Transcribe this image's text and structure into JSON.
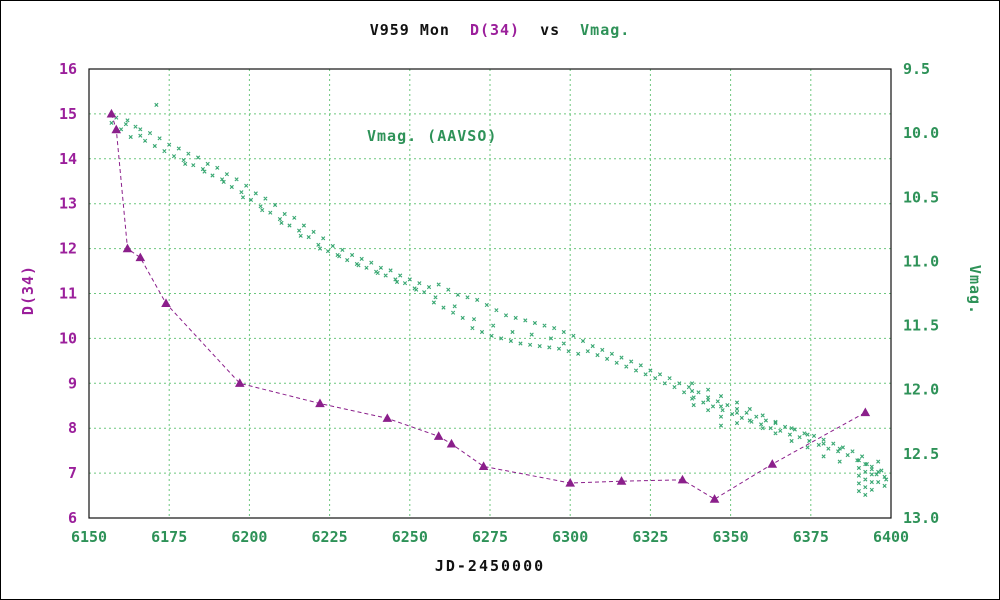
{
  "title": {
    "part1": "V959 Mon",
    "part2": "D(34)",
    "part3": "vs",
    "part4": "Vmag."
  },
  "annotation": "Vmag. (AAVSO)",
  "colors": {
    "green_text": "#2e9258",
    "green_marker": "#3aa873",
    "purple_text": "#9b1f9b",
    "purple_marker": "#8b1f8b",
    "grid": "#6cc77e",
    "frame": "#111111",
    "background": "#ffffff"
  },
  "chart_data": {
    "type": "scatter",
    "title": "V959 Mon D(34) vs Vmag.",
    "xlabel": "JD-2450000",
    "grid": true,
    "x_axis": {
      "label": "JD-2450000",
      "min": 6150,
      "max": 6400,
      "tick_labels": [
        "6150",
        "6175",
        "6200",
        "6225",
        "6250",
        "6275",
        "6300",
        "6325",
        "6350",
        "6375",
        "6400"
      ]
    },
    "y_left_axis": {
      "label": "D(34)",
      "min": 6,
      "max": 16,
      "tick_labels": [
        "6",
        "7",
        "8",
        "9",
        "10",
        "11",
        "12",
        "13",
        "14",
        "15",
        "16"
      ]
    },
    "y_right_axis": {
      "label": "Vmag.",
      "min": 9.5,
      "max": 13.0,
      "inverted": true,
      "tick_labels": [
        "9.5",
        "10.0",
        "10.5",
        "11.0",
        "11.5",
        "12.0",
        "12.5",
        "13.0"
      ]
    },
    "series": [
      {
        "name": "Vmag. (AAVSO)",
        "axis": "right",
        "marker": "cross",
        "line": "none",
        "points": [
          [
            6157,
            9.92
          ],
          [
            6158.5,
            9.88
          ],
          [
            6160,
            9.97
          ],
          [
            6161.5,
            9.93
          ],
          [
            6163,
            10.03
          ],
          [
            6164.5,
            9.95
          ],
          [
            6166,
            10.02
          ],
          [
            6167.5,
            10.06
          ],
          [
            6169,
            10.0
          ],
          [
            6170.5,
            10.1
          ],
          [
            6172,
            10.04
          ],
          [
            6173.5,
            10.14
          ],
          [
            6175,
            10.09
          ],
          [
            6176.5,
            10.18
          ],
          [
            6178,
            10.12
          ],
          [
            6179.5,
            10.21
          ],
          [
            6181,
            10.16
          ],
          [
            6182.5,
            10.25
          ],
          [
            6184,
            10.19
          ],
          [
            6185.5,
            10.28
          ],
          [
            6187,
            10.24
          ],
          [
            6188.5,
            10.33
          ],
          [
            6190,
            10.27
          ],
          [
            6191.5,
            10.36
          ],
          [
            6193,
            10.32
          ],
          [
            6194.5,
            10.42
          ],
          [
            6196,
            10.36
          ],
          [
            6197.5,
            10.46
          ],
          [
            6199,
            10.41
          ],
          [
            6200.5,
            10.52
          ],
          [
            6202,
            10.47
          ],
          [
            6203.5,
            10.57
          ],
          [
            6205,
            10.51
          ],
          [
            6206.5,
            10.62
          ],
          [
            6208,
            10.56
          ],
          [
            6209.5,
            10.67
          ],
          [
            6211,
            10.63
          ],
          [
            6212.5,
            10.72
          ],
          [
            6214,
            10.66
          ],
          [
            6215.5,
            10.76
          ],
          [
            6217,
            10.72
          ],
          [
            6218.5,
            10.81
          ],
          [
            6220,
            10.77
          ],
          [
            6221.5,
            10.87
          ],
          [
            6223,
            10.82
          ],
          [
            6224.5,
            10.92
          ],
          [
            6226,
            10.88
          ],
          [
            6227.5,
            10.95
          ],
          [
            6229,
            10.91
          ],
          [
            6230.5,
            10.99
          ],
          [
            6232,
            10.95
          ],
          [
            6233.5,
            11.02
          ],
          [
            6235,
            10.98
          ],
          [
            6236.5,
            11.05
          ],
          [
            6238,
            11.01
          ],
          [
            6239.5,
            11.08
          ],
          [
            6241,
            11.05
          ],
          [
            6242.5,
            11.11
          ],
          [
            6244,
            11.07
          ],
          [
            6245.5,
            11.14
          ],
          [
            6247,
            11.11
          ],
          [
            6248.5,
            11.17
          ],
          [
            6250,
            11.14
          ],
          [
            6251.5,
            11.21
          ],
          [
            6253,
            11.17
          ],
          [
            6254.5,
            11.24
          ],
          [
            6256,
            11.2
          ],
          [
            6257.5,
            11.32
          ],
          [
            6259,
            11.18
          ],
          [
            6260.5,
            11.36
          ],
          [
            6262,
            11.22
          ],
          [
            6263.5,
            11.4
          ],
          [
            6265,
            11.26
          ],
          [
            6266.5,
            11.44
          ],
          [
            6268,
            11.28
          ],
          [
            6269.5,
            11.52
          ],
          [
            6271,
            11.3
          ],
          [
            6272.5,
            11.55
          ],
          [
            6274,
            11.34
          ],
          [
            6275.5,
            11.58
          ],
          [
            6277,
            11.38
          ],
          [
            6278.5,
            11.6
          ],
          [
            6280,
            11.42
          ],
          [
            6281.5,
            11.62
          ],
          [
            6283,
            11.44
          ],
          [
            6284.5,
            11.64
          ],
          [
            6286,
            11.46
          ],
          [
            6287.5,
            11.65
          ],
          [
            6289,
            11.48
          ],
          [
            6290.5,
            11.66
          ],
          [
            6292,
            11.5
          ],
          [
            6293.5,
            11.67
          ],
          [
            6295,
            11.52
          ],
          [
            6296.5,
            11.68
          ],
          [
            6298,
            11.55
          ],
          [
            6299.5,
            11.7
          ],
          [
            6301,
            11.58
          ],
          [
            6302.5,
            11.72
          ],
          [
            6304,
            11.62
          ],
          [
            6305.5,
            11.7
          ],
          [
            6307,
            11.66
          ],
          [
            6308.5,
            11.73
          ],
          [
            6310,
            11.69
          ],
          [
            6311.5,
            11.76
          ],
          [
            6313,
            11.72
          ],
          [
            6314.5,
            11.79
          ],
          [
            6316,
            11.75
          ],
          [
            6317.5,
            11.82
          ],
          [
            6319,
            11.78
          ],
          [
            6320.5,
            11.85
          ],
          [
            6322,
            11.81
          ],
          [
            6323.5,
            11.88
          ],
          [
            6325,
            11.85
          ],
          [
            6326.5,
            11.91
          ],
          [
            6328,
            11.88
          ],
          [
            6329.5,
            11.95
          ],
          [
            6331,
            11.91
          ],
          [
            6332.5,
            11.98
          ],
          [
            6334,
            11.95
          ],
          [
            6335.5,
            12.02
          ],
          [
            6337,
            11.98
          ],
          [
            6338.5,
            12.06
          ],
          [
            6340,
            12.02
          ],
          [
            6341.5,
            12.1
          ],
          [
            6343,
            12.06
          ],
          [
            6344.5,
            12.13
          ],
          [
            6346,
            12.09
          ],
          [
            6347.5,
            12.16
          ],
          [
            6349,
            12.12
          ],
          [
            6350.5,
            12.19
          ],
          [
            6352,
            12.15
          ],
          [
            6353.5,
            12.22
          ],
          [
            6355,
            12.18
          ],
          [
            6356.5,
            12.25
          ],
          [
            6358,
            12.21
          ],
          [
            6359.5,
            12.27
          ],
          [
            6361,
            12.24
          ],
          [
            6362.5,
            12.3
          ],
          [
            6364,
            12.26
          ],
          [
            6365.5,
            12.32
          ],
          [
            6367,
            12.29
          ],
          [
            6368.5,
            12.35
          ],
          [
            6370,
            12.31
          ],
          [
            6371.5,
            12.37
          ],
          [
            6373,
            12.34
          ],
          [
            6374.5,
            12.4
          ],
          [
            6376,
            12.36
          ],
          [
            6377.5,
            12.43
          ],
          [
            6379,
            12.39
          ],
          [
            6380.5,
            12.46
          ],
          [
            6382,
            12.42
          ],
          [
            6383.5,
            12.48
          ],
          [
            6385,
            12.45
          ],
          [
            6386.5,
            12.51
          ],
          [
            6388,
            12.48
          ],
          [
            6389.5,
            12.55
          ],
          [
            6391,
            12.52
          ],
          [
            6392.5,
            12.58
          ],
          [
            6394,
            12.62
          ],
          [
            6395.5,
            12.66
          ],
          [
            6397,
            12.63
          ],
          [
            6398.5,
            12.7
          ],
          [
            6171,
            9.78
          ],
          [
            6162,
            9.9
          ],
          [
            6166,
            9.97
          ],
          [
            6180,
            10.24
          ],
          [
            6186,
            10.3
          ],
          [
            6192,
            10.38
          ],
          [
            6198,
            10.5
          ],
          [
            6204,
            10.6
          ],
          [
            6210,
            10.7
          ],
          [
            6216,
            10.8
          ],
          [
            6222,
            10.9
          ],
          [
            6228,
            10.96
          ],
          [
            6234,
            11.03
          ],
          [
            6240,
            11.09
          ],
          [
            6246,
            11.16
          ],
          [
            6252,
            11.22
          ],
          [
            6258,
            11.28
          ],
          [
            6264,
            11.35
          ],
          [
            6270,
            11.45
          ],
          [
            6276,
            11.5
          ],
          [
            6282,
            11.55
          ],
          [
            6288,
            11.57
          ],
          [
            6294,
            11.6
          ],
          [
            6298,
            11.64
          ],
          [
            6338,
            11.95
          ],
          [
            6338,
            12.01
          ],
          [
            6338,
            12.07
          ],
          [
            6338.5,
            12.12
          ],
          [
            6343,
            12.0
          ],
          [
            6343,
            12.08
          ],
          [
            6343,
            12.16
          ],
          [
            6347,
            12.05
          ],
          [
            6347,
            12.13
          ],
          [
            6347,
            12.21
          ],
          [
            6347,
            12.28
          ],
          [
            6352,
            12.1
          ],
          [
            6352,
            12.18
          ],
          [
            6352,
            12.26
          ],
          [
            6356,
            12.15
          ],
          [
            6356,
            12.24
          ],
          [
            6360,
            12.2
          ],
          [
            6360,
            12.3
          ],
          [
            6364,
            12.25
          ],
          [
            6364,
            12.34
          ],
          [
            6369,
            12.3
          ],
          [
            6369,
            12.4
          ],
          [
            6374,
            12.35
          ],
          [
            6374,
            12.45
          ],
          [
            6379,
            12.42
          ],
          [
            6379,
            12.52
          ],
          [
            6384,
            12.46
          ],
          [
            6384,
            12.56
          ],
          [
            6390,
            12.55
          ],
          [
            6390,
            12.61
          ],
          [
            6390,
            12.67
          ],
          [
            6390,
            12.73
          ],
          [
            6390,
            12.79
          ],
          [
            6392,
            12.58
          ],
          [
            6392,
            12.64
          ],
          [
            6392,
            12.7
          ],
          [
            6392,
            12.76
          ],
          [
            6392,
            12.82
          ],
          [
            6394,
            12.6
          ],
          [
            6394,
            12.66
          ],
          [
            6394,
            12.72
          ],
          [
            6394,
            12.78
          ],
          [
            6396,
            12.56
          ],
          [
            6396,
            12.64
          ],
          [
            6396,
            12.72
          ],
          [
            6398,
            12.68
          ],
          [
            6398,
            12.75
          ]
        ]
      },
      {
        "name": "D(34)",
        "axis": "left",
        "marker": "triangle",
        "line": "dashed",
        "points": [
          [
            6157,
            15.0
          ],
          [
            6158.5,
            14.65
          ],
          [
            6162,
            12.0
          ],
          [
            6166,
            11.8
          ],
          [
            6174,
            10.78
          ],
          [
            6197,
            9.0
          ],
          [
            6222,
            8.55
          ],
          [
            6243,
            8.22
          ],
          [
            6259,
            7.82
          ],
          [
            6263,
            7.65
          ],
          [
            6273,
            7.15
          ],
          [
            6300,
            6.78
          ],
          [
            6316,
            6.82
          ],
          [
            6335,
            6.85
          ],
          [
            6345,
            6.42
          ],
          [
            6363,
            7.2
          ],
          [
            6392,
            8.35
          ]
        ]
      }
    ]
  }
}
